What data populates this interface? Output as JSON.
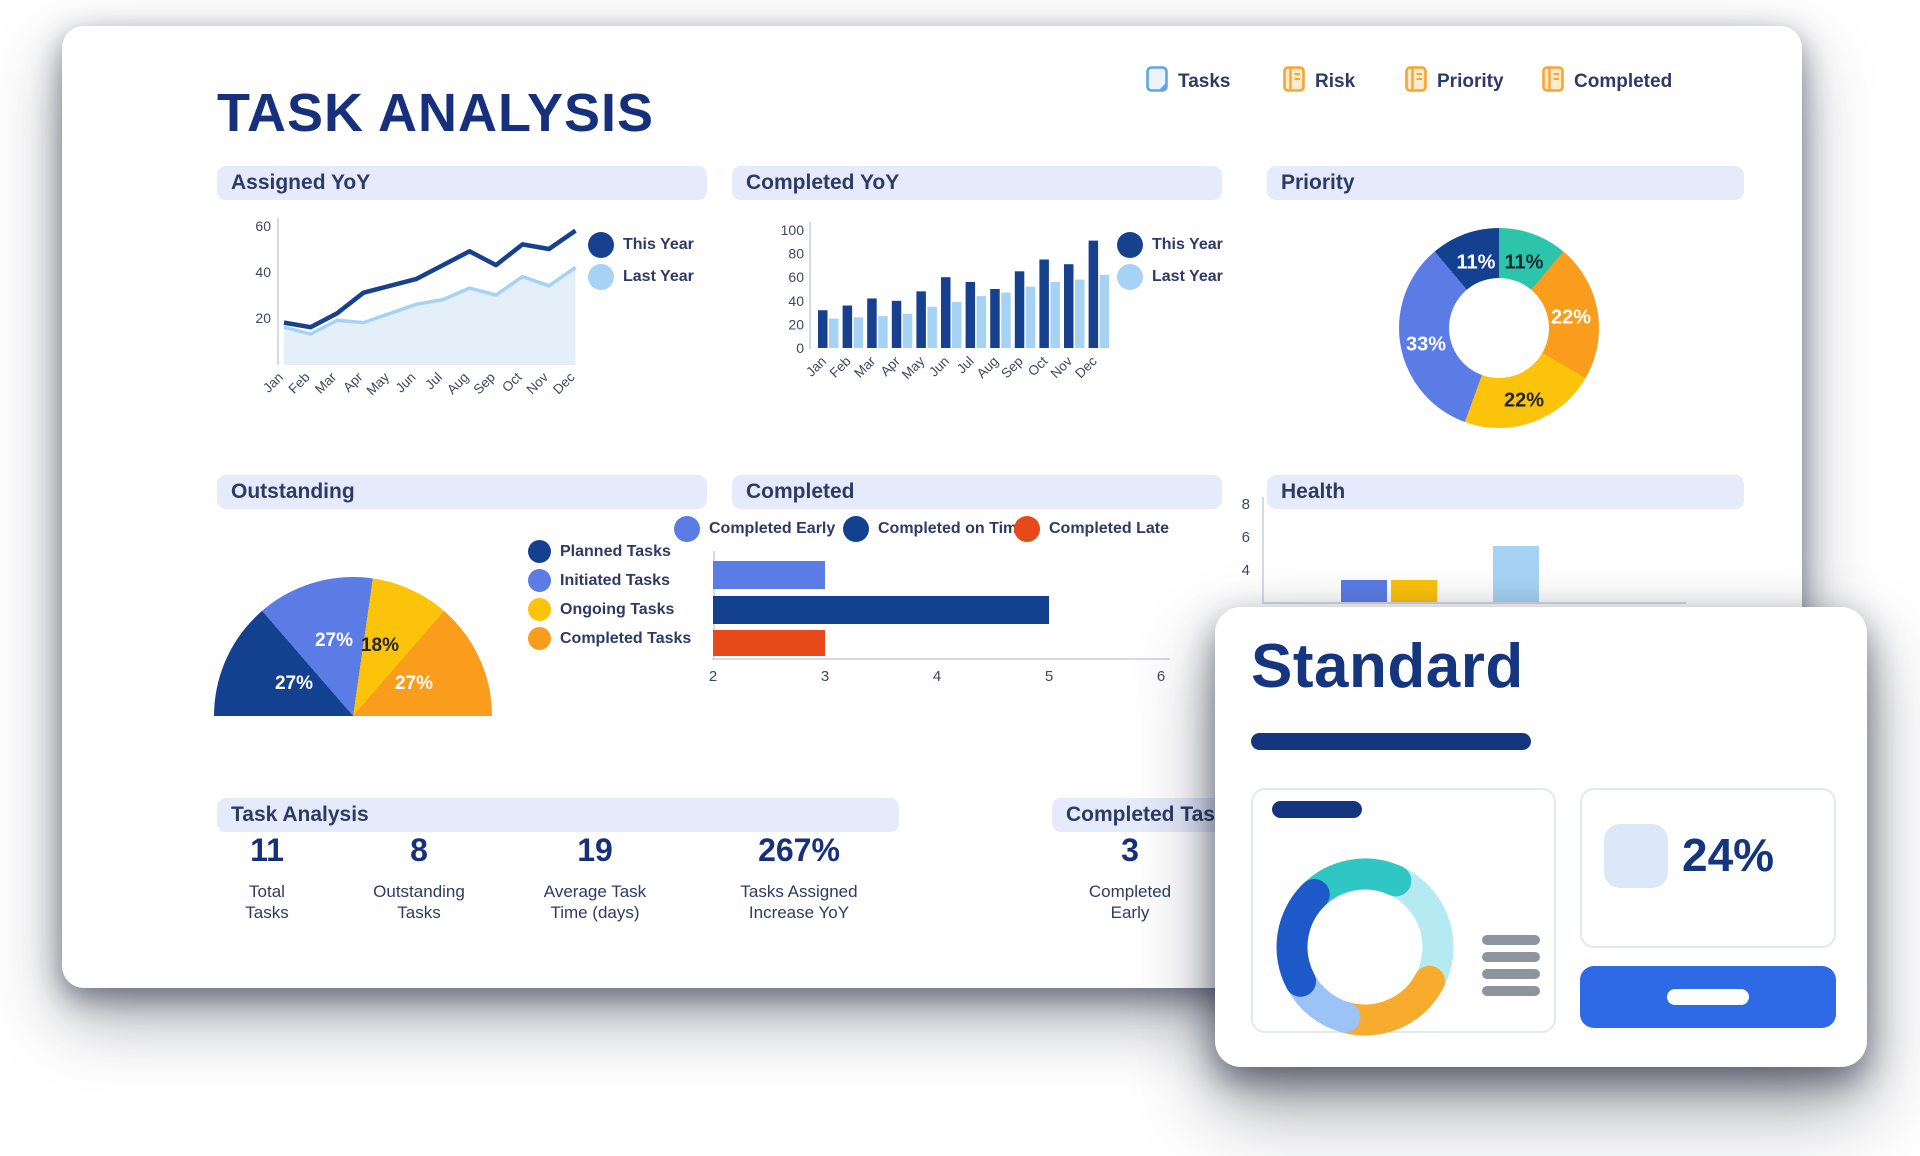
{
  "header": {
    "title": "TASK ANALYSIS",
    "menu": [
      {
        "label": "Tasks",
        "icon": "tasks-icon",
        "icon_color": "#5FA4EC"
      },
      {
        "label": "Risk",
        "icon": "risk-icon",
        "icon_color": "#F6A531"
      },
      {
        "label": "Priority",
        "icon": "priority-icon",
        "icon_color": "#F6A531"
      },
      {
        "label": "Completed",
        "icon": "completed-icon",
        "icon_color": "#F6A531"
      }
    ]
  },
  "chart_data": [
    {
      "id": "assigned_yoy",
      "type": "line",
      "title": "Assigned YoY",
      "x": [
        "Jan",
        "Feb",
        "Mar",
        "Apr",
        "May",
        "Jun",
        "Jul",
        "Aug",
        "Sep",
        "Oct",
        "Nov",
        "Dec"
      ],
      "series": [
        {
          "name": "This Year",
          "color": "#17418F",
          "values": [
            18,
            16,
            22,
            31,
            34,
            37,
            43,
            49,
            43,
            52,
            50,
            58
          ]
        },
        {
          "name": "Last Year",
          "color": "#A6D3F4",
          "area_color": "#E4EFFA",
          "values": [
            16,
            13,
            19,
            18,
            22,
            26,
            28,
            33,
            30,
            38,
            34,
            42
          ]
        }
      ],
      "ylim": [
        0,
        60
      ],
      "yticks": [
        20,
        40,
        60
      ],
      "legend_position": "right"
    },
    {
      "id": "completed_yoy",
      "type": "bar",
      "title": "Completed YoY",
      "x": [
        "Jan",
        "Feb",
        "Mar",
        "Apr",
        "May",
        "Jun",
        "Jul",
        "Aug",
        "Sep",
        "Oct",
        "Nov",
        "Dec"
      ],
      "series": [
        {
          "name": "This Year",
          "color": "#17418F",
          "values": [
            32,
            36,
            42,
            40,
            48,
            60,
            56,
            50,
            65,
            75,
            71,
            91
          ]
        },
        {
          "name": "Last Year",
          "color": "#A6D3F4",
          "values": [
            25,
            26,
            27,
            29,
            35,
            39,
            44,
            47,
            52,
            56,
            58,
            62
          ]
        }
      ],
      "ylim": [
        0,
        100
      ],
      "yticks": [
        0,
        20,
        40,
        60,
        80,
        100
      ],
      "legend_position": "right"
    },
    {
      "id": "priority",
      "type": "donut",
      "title": "Priority",
      "slices": [
        {
          "label": "11%",
          "value": 11,
          "color": "#2CC5AC",
          "label_color": "#1E2430",
          "label_xy": [
            125,
            35
          ]
        },
        {
          "label": "22%",
          "value": 22,
          "color": "#FA9D1C",
          "label_color": "#FFFFFF",
          "label_xy": [
            172,
            90
          ]
        },
        {
          "label": "22%",
          "value": 22,
          "color": "#FCC30B",
          "label_color": "#1E2430",
          "label_xy": [
            125,
            173
          ]
        },
        {
          "label": "33%",
          "value": 33,
          "color": "#5B7CE5",
          "label_color": "#FFFFFF",
          "label_xy": [
            27,
            117
          ]
        },
        {
          "label": "11%",
          "value": 11,
          "color": "#14418F",
          "label_color": "#FFFFFF",
          "label_xy": [
            77,
            35
          ]
        }
      ]
    },
    {
      "id": "outstanding",
      "type": "half-donut",
      "title": "Outstanding",
      "slices": [
        {
          "name": "Planned Tasks",
          "label": "27%",
          "value": 27,
          "color": "#14418F",
          "label_color": "#FFFFFF",
          "label_xy": [
            80,
            107
          ]
        },
        {
          "name": "Initiated Tasks",
          "label": "27%",
          "value": 27,
          "color": "#5B7CE5",
          "label_color": "#FFFFFF",
          "label_xy": [
            120,
            64
          ]
        },
        {
          "name": "Ongoing Tasks",
          "label": "18%",
          "value": 18,
          "color": "#FCC30B",
          "label_color": "#1E2430",
          "label_xy": [
            166,
            69
          ]
        },
        {
          "name": "Completed Tasks",
          "label": "27%",
          "value": 27,
          "color": "#FA9D1C",
          "label_color": "#FFFFFF",
          "label_xy": [
            200,
            107
          ]
        }
      ]
    },
    {
      "id": "completed",
      "type": "hbar",
      "title": "Completed",
      "bars": [
        {
          "name": "Completed Early",
          "value": 3,
          "color": "#5B7CE5"
        },
        {
          "name": "Completed on Time",
          "value": 5,
          "color": "#14418F"
        },
        {
          "name": "Completed Late",
          "value": 3,
          "color": "#E8491B"
        }
      ],
      "xticks": [
        2,
        3,
        4,
        5,
        6
      ],
      "xlim": [
        2,
        6
      ]
    },
    {
      "id": "health",
      "type": "bar",
      "title": "Health",
      "yticks": [
        4,
        6,
        8
      ],
      "bars": [
        {
          "value": 3.5,
          "color": "#5B7CE5"
        },
        {
          "value": 3.5,
          "color": "#FCC30B"
        },
        {
          "value": 5.6,
          "color": "#A6D3F4"
        }
      ],
      "note": "partially hidden behind overlay card"
    },
    {
      "id": "standard_donut",
      "type": "donut",
      "segments": [
        {
          "color": "#B5EAF2",
          "start": 25,
          "end": 118
        },
        {
          "color": "#F8AB2D",
          "start": 118,
          "end": 196
        },
        {
          "color": "#9CC3F7",
          "start": 196,
          "end": 242
        },
        {
          "color": "#2FC7C4",
          "start": -45,
          "end": 25
        },
        {
          "color": "#1D59C8",
          "start": 242,
          "end": 316
        }
      ]
    }
  ],
  "stats": {
    "task_analysis": {
      "title": "Task Analysis",
      "items": [
        {
          "value": "11",
          "label_lines": [
            "Total",
            "Tasks"
          ]
        },
        {
          "value": "8",
          "label_lines": [
            "Outstanding",
            "Tasks"
          ]
        },
        {
          "value": "19",
          "label_lines": [
            "Average Task",
            "Time (days)"
          ]
        },
        {
          "value": "267%",
          "label_lines": [
            "Tasks Assigned",
            "Increase YoY"
          ]
        }
      ]
    },
    "completed_tasks": {
      "title": "Completed Tasks",
      "items": [
        {
          "value": "3",
          "label_lines": [
            "Completed",
            "Early"
          ]
        }
      ],
      "clipped_fragment_lines": [
        "Co",
        "d"
      ]
    }
  },
  "overlay": {
    "title": "Standard",
    "metric_value": "24%"
  }
}
